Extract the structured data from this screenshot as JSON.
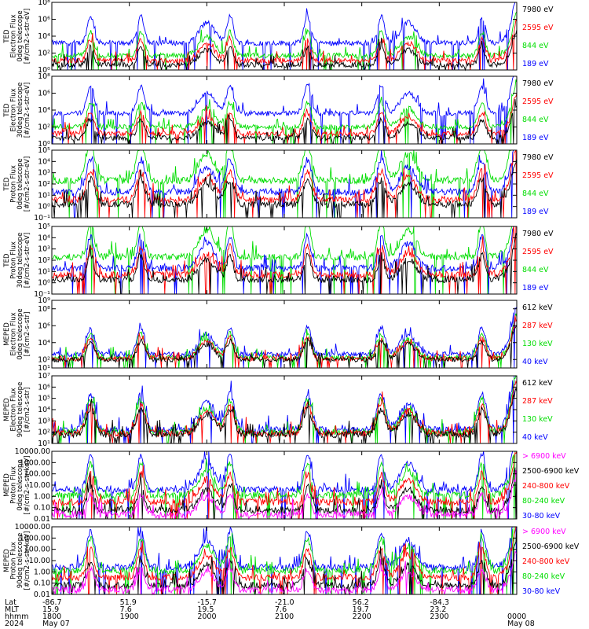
{
  "chart_data": {
    "type": "line",
    "footer": {
      "row_labels": [
        "Lat",
        "MLT",
        "hhmm",
        "2024"
      ],
      "columns": [
        {
          "lat": "-86.7",
          "mlt": "15.9",
          "hhmm": "1800",
          "date": "May 07"
        },
        {
          "lat": "51.9",
          "mlt": "7.6",
          "hhmm": "1900",
          "date": ""
        },
        {
          "lat": "-15.7",
          "mlt": "19.5",
          "hhmm": "2000",
          "date": ""
        },
        {
          "lat": "-21.0",
          "mlt": "7.6",
          "hhmm": "2100",
          "date": ""
        },
        {
          "lat": "56.2",
          "mlt": "19.7",
          "hhmm": "2200",
          "date": ""
        },
        {
          "lat": "-84.3",
          "mlt": "23.2",
          "hhmm": "2300",
          "date": ""
        },
        {
          "lat": "",
          "mlt": "",
          "hhmm": "0000",
          "date": "May 08"
        }
      ]
    },
    "panels": [
      {
        "ylabel": [
          "TED",
          "Electron Flux",
          "0deg telescope",
          "[#/cm2-s-str-eV]"
        ],
        "ylim_log": [
          0,
          8
        ],
        "ticks": [
          {
            "v": 0,
            "t": "10⁰"
          },
          {
            "v": 2,
            "t": "10²"
          },
          {
            "v": 4,
            "t": "10⁴"
          },
          {
            "v": 6,
            "t": "10⁶"
          },
          {
            "v": 8,
            "t": "10⁸"
          }
        ],
        "legend": [
          {
            "text": "7980 eV",
            "color": "#000000"
          },
          {
            "text": "2595 eV",
            "color": "#ff0000"
          },
          {
            "text": "844 eV",
            "color": "#00dd00"
          },
          {
            "text": "189 eV",
            "color": "#0000ff"
          }
        ],
        "series": [
          {
            "name": "189 eV",
            "color": "#0000ff",
            "base": 3.2
          },
          {
            "name": "844 eV",
            "color": "#00dd00",
            "base": 1.7
          },
          {
            "name": "2595 eV",
            "color": "#ff0000",
            "base": 1.1
          },
          {
            "name": "7980 eV",
            "color": "#000000",
            "base": 0.6
          }
        ]
      },
      {
        "ylabel": [
          "TED",
          "Electron Flux",
          "30deg telescope",
          "[#/cm2-s-str-eV]"
        ],
        "ylim_log": [
          0,
          8
        ],
        "ticks": [
          {
            "v": 0,
            "t": "10⁰"
          },
          {
            "v": 2,
            "t": "10²"
          },
          {
            "v": 4,
            "t": "10⁴"
          },
          {
            "v": 6,
            "t": "10⁶"
          },
          {
            "v": 8,
            "t": "10⁸"
          }
        ],
        "legend": [
          {
            "text": "7980 eV",
            "color": "#000000"
          },
          {
            "text": "2595 eV",
            "color": "#ff0000"
          },
          {
            "text": "844 eV",
            "color": "#00dd00"
          },
          {
            "text": "189 eV",
            "color": "#0000ff"
          }
        ],
        "series": [
          {
            "name": "189 eV",
            "color": "#0000ff",
            "base": 3.6
          },
          {
            "name": "844 eV",
            "color": "#00dd00",
            "base": 2.0
          },
          {
            "name": "2595 eV",
            "color": "#ff0000",
            "base": 1.2
          },
          {
            "name": "7980 eV",
            "color": "#000000",
            "base": 0.7
          }
        ]
      },
      {
        "ylabel": [
          "TED",
          "Proton Flux",
          "0deg telescope",
          "[#/cm2-s-str-eV]"
        ],
        "ylim_log": [
          -1,
          5
        ],
        "ticks": [
          {
            "v": -1,
            "t": "10⁻¹"
          },
          {
            "v": 0,
            "t": "10⁰"
          },
          {
            "v": 1,
            "t": "10¹"
          },
          {
            "v": 2,
            "t": "10²"
          },
          {
            "v": 3,
            "t": "10³"
          },
          {
            "v": 4,
            "t": "10⁴"
          },
          {
            "v": 5,
            "t": "10⁵"
          }
        ],
        "legend": [
          {
            "text": "7980 eV",
            "color": "#000000"
          },
          {
            "text": "2595 eV",
            "color": "#ff0000"
          },
          {
            "text": "844 eV",
            "color": "#00dd00"
          },
          {
            "text": "189 eV",
            "color": "#0000ff"
          }
        ],
        "series": [
          {
            "name": "844 eV",
            "color": "#00dd00",
            "base": 2.3
          },
          {
            "name": "189 eV",
            "color": "#0000ff",
            "base": 1.3
          },
          {
            "name": "2595 eV",
            "color": "#ff0000",
            "base": 0.6
          },
          {
            "name": "7980 eV",
            "color": "#000000",
            "base": 0.2
          }
        ]
      },
      {
        "ylabel": [
          "TED",
          "Proton Flux",
          "30deg telescope",
          "[#/cm2-s-str-eV]"
        ],
        "ylim_log": [
          -1,
          5
        ],
        "ticks": [
          {
            "v": -1,
            "t": "10⁻¹"
          },
          {
            "v": 0,
            "t": "10⁰"
          },
          {
            "v": 1,
            "t": "10¹"
          },
          {
            "v": 2,
            "t": "10²"
          },
          {
            "v": 3,
            "t": "10³"
          },
          {
            "v": 4,
            "t": "10⁴"
          },
          {
            "v": 5,
            "t": "10⁵"
          }
        ],
        "legend": [
          {
            "text": "7980 eV",
            "color": "#000000"
          },
          {
            "text": "2595 eV",
            "color": "#ff0000"
          },
          {
            "text": "844 eV",
            "color": "#00dd00"
          },
          {
            "text": "189 eV",
            "color": "#0000ff"
          }
        ],
        "series": [
          {
            "name": "844 eV",
            "color": "#00dd00",
            "base": 2.3
          },
          {
            "name": "189 eV",
            "color": "#0000ff",
            "base": 1.3
          },
          {
            "name": "2595 eV",
            "color": "#ff0000",
            "base": 0.7
          },
          {
            "name": "7980 eV",
            "color": "#000000",
            "base": 0.3
          }
        ]
      },
      {
        "ylabel": [
          "MEPED",
          "Electron Flux",
          "0deg telescope",
          "[#/cm2-s-str]"
        ],
        "ylim_log": [
          1,
          9
        ],
        "ticks": [
          {
            "v": 1,
            "t": "10¹"
          },
          {
            "v": 2,
            "t": "10²"
          },
          {
            "v": 4,
            "t": "10⁴"
          },
          {
            "v": 6,
            "t": "10⁶"
          },
          {
            "v": 8,
            "t": "10⁸"
          },
          {
            "v": 9,
            "t": "10⁹"
          }
        ],
        "legend": [
          {
            "text": "612 keV",
            "color": "#000000"
          },
          {
            "text": "287 keV",
            "color": "#ff0000"
          },
          {
            "text": "130 keV",
            "color": "#00dd00"
          },
          {
            "text": "40 keV",
            "color": "#0000ff"
          }
        ],
        "series": [
          {
            "name": "40 keV",
            "color": "#0000ff",
            "base": 2.6
          },
          {
            "name": "130 keV",
            "color": "#00dd00",
            "base": 2.2
          },
          {
            "name": "287 keV",
            "color": "#ff0000",
            "base": 2.1
          },
          {
            "name": "612 keV",
            "color": "#000000",
            "base": 2.0
          }
        ]
      },
      {
        "ylabel": [
          "MEPED",
          "Electron Flux",
          "90deg telescope",
          "[#/cm2-s-str]"
        ],
        "ylim_log": [
          1,
          7
        ],
        "ticks": [
          {
            "v": 1,
            "t": "10¹"
          },
          {
            "v": 2,
            "t": "10²"
          },
          {
            "v": 3,
            "t": "10³"
          },
          {
            "v": 4,
            "t": "10⁴"
          },
          {
            "v": 5,
            "t": "10⁵"
          },
          {
            "v": 6,
            "t": "10⁶"
          },
          {
            "v": 7,
            "t": "10⁷"
          }
        ],
        "legend": [
          {
            "text": "612 keV",
            "color": "#000000"
          },
          {
            "text": "287 keV",
            "color": "#ff0000"
          },
          {
            "text": "130 keV",
            "color": "#00dd00"
          },
          {
            "text": "40 keV",
            "color": "#0000ff"
          }
        ],
        "series": [
          {
            "name": "40 keV",
            "color": "#0000ff",
            "base": 2.2
          },
          {
            "name": "130 keV",
            "color": "#00dd00",
            "base": 2.0
          },
          {
            "name": "287 keV",
            "color": "#ff0000",
            "base": 1.9
          },
          {
            "name": "612 keV",
            "color": "#000000",
            "base": 1.8
          }
        ]
      },
      {
        "ylabel": [
          "MEPED",
          "Proton Flux",
          "0deg telescope",
          "[#/cm2-s-str-keV]"
        ],
        "ylim_log": [
          -2,
          4
        ],
        "ticks": [
          {
            "v": -2,
            "t": "0.01"
          },
          {
            "v": -1,
            "t": "0.10"
          },
          {
            "v": 0,
            "t": "1.00"
          },
          {
            "v": 1,
            "t": "10.00"
          },
          {
            "v": 2,
            "t": "100.00"
          },
          {
            "v": 3,
            "t": "1000.00"
          },
          {
            "v": 4,
            "t": "10000.00"
          }
        ],
        "legend": [
          {
            "text": "> 6900 keV",
            "color": "#ff00ff"
          },
          {
            "text": "2500-6900 keV",
            "color": "#000000"
          },
          {
            "text": "240-800 keV",
            "color": "#ff0000"
          },
          {
            "text": "80-240 keV",
            "color": "#00dd00"
          },
          {
            "text": "30-80 keV",
            "color": "#0000ff"
          }
        ],
        "series": [
          {
            "name": "30-80 keV",
            "color": "#0000ff",
            "base": 0.6
          },
          {
            "name": "80-240 keV",
            "color": "#00dd00",
            "base": 0.1
          },
          {
            "name": "240-800 keV",
            "color": "#ff0000",
            "base": -0.5
          },
          {
            "name": "2500-6900 keV",
            "color": "#000000",
            "base": -1.2
          },
          {
            "name": "> 6900 keV",
            "color": "#ff00ff",
            "base": -1.6
          }
        ]
      },
      {
        "ylabel": [
          "MEPED",
          "Proton Flux",
          "90deg telescope",
          "[#/cm2-s-str-keV]"
        ],
        "ylim_log": [
          -2,
          4
        ],
        "ticks": [
          {
            "v": -2,
            "t": "0.01"
          },
          {
            "v": -1,
            "t": "0.10"
          },
          {
            "v": 0,
            "t": "1.00"
          },
          {
            "v": 1,
            "t": "10.00"
          },
          {
            "v": 2,
            "t": "100.00"
          },
          {
            "v": 3,
            "t": "1000.00"
          },
          {
            "v": 4,
            "t": "10000.00"
          }
        ],
        "legend": [
          {
            "text": "> 6900 keV",
            "color": "#ff00ff"
          },
          {
            "text": "2500-6900 keV",
            "color": "#000000"
          },
          {
            "text": "240-800 keV",
            "color": "#ff0000"
          },
          {
            "text": "80-240 keV",
            "color": "#00dd00"
          },
          {
            "text": "30-80 keV",
            "color": "#0000ff"
          }
        ],
        "series": [
          {
            "name": "30-80 keV",
            "color": "#0000ff",
            "base": 0.4
          },
          {
            "name": "80-240 keV",
            "color": "#00dd00",
            "base": 0.1
          },
          {
            "name": "240-800 keV",
            "color": "#ff0000",
            "base": -0.5
          },
          {
            "name": "2500-6900 keV",
            "color": "#000000",
            "base": -1.2
          },
          {
            "name": "> 6900 keV",
            "color": "#ff00ff",
            "base": -1.6
          }
        ]
      }
    ],
    "events_hours_since_1800": [
      0.5,
      1.15,
      2.3,
      3.3,
      4.25,
      5.55,
      6.0
    ],
    "big_arcs_hours_since_1800": [
      2.0,
      4.6,
      6.0
    ]
  }
}
